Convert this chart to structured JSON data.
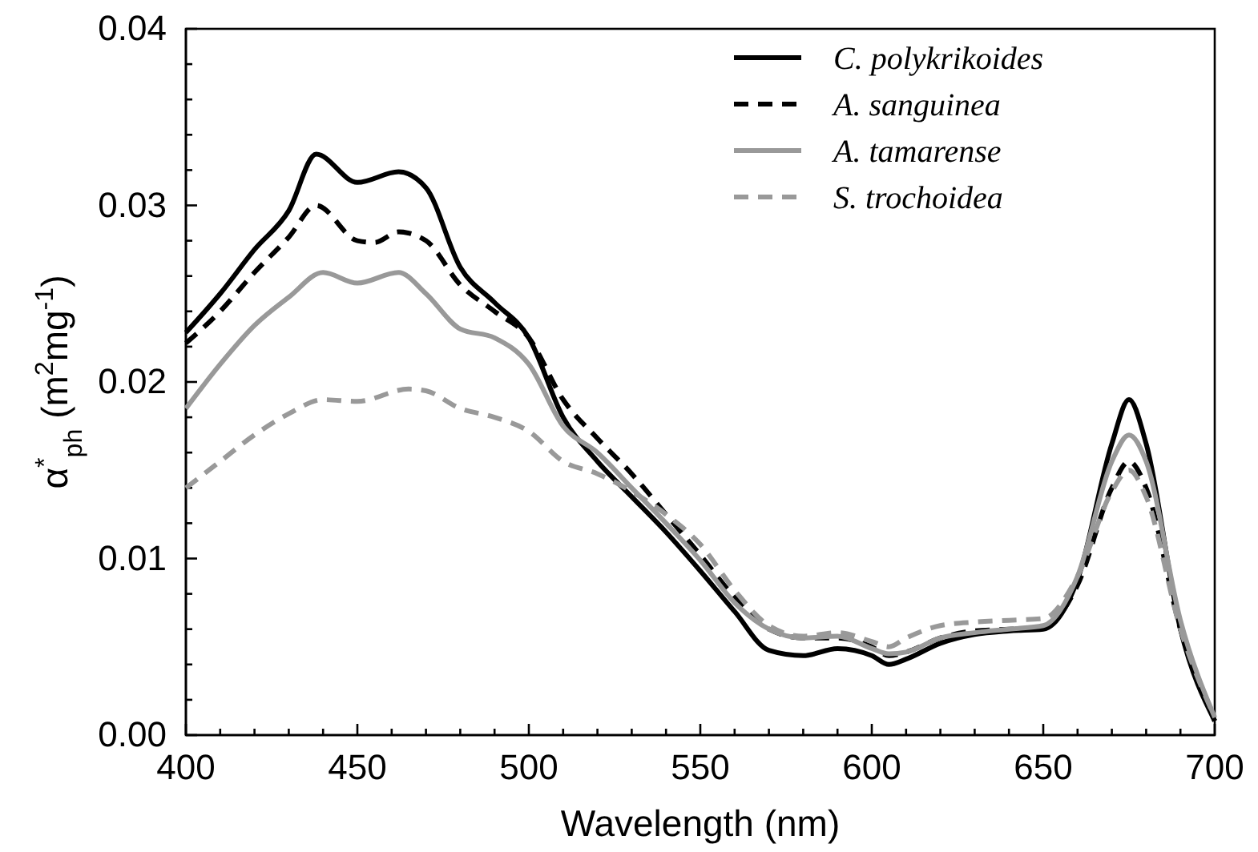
{
  "chart_data": {
    "type": "line",
    "xlabel": "Wavelength (nm)",
    "ylabel": "α$^{*}$$_{ph}$ (m$^{2}$mg$^{-1}$)",
    "xlim": [
      400,
      700
    ],
    "ylim": [
      0,
      0.04
    ],
    "xticks": [
      400,
      {
        "value": 410,
        "label": null
      },
      {
        "value": 420,
        "label": null
      },
      {
        "value": 430,
        "label": null
      },
      {
        "value": 440,
        "label": null
      },
      450,
      {
        "value": 460,
        "label": null
      },
      {
        "value": 470,
        "label": null
      },
      {
        "value": 480,
        "label": null
      },
      {
        "value": 490,
        "label": null
      },
      500,
      {
        "value": 510,
        "label": null
      },
      {
        "value": 520,
        "label": null
      },
      {
        "value": 530,
        "label": null
      },
      {
        "value": 540,
        "label": null
      },
      550,
      {
        "value": 560,
        "label": null
      },
      {
        "value": 570,
        "label": null
      },
      {
        "value": 580,
        "label": null
      },
      {
        "value": 590,
        "label": null
      },
      600,
      {
        "value": 610,
        "label": null
      },
      {
        "value": 620,
        "label": null
      },
      {
        "value": 630,
        "label": null
      },
      {
        "value": 640,
        "label": null
      },
      650,
      {
        "value": 660,
        "label": null
      },
      {
        "value": 670,
        "label": null
      },
      {
        "value": 680,
        "label": null
      },
      {
        "value": 690,
        "label": null
      },
      700
    ],
    "yticks": [
      {
        "value": 0,
        "label": "0.00"
      },
      {
        "value": 0.002,
        "label": null
      },
      {
        "value": 0.004,
        "label": null
      },
      {
        "value": 0.006,
        "label": null
      },
      {
        "value": 0.008,
        "label": null
      },
      {
        "value": 0.01,
        "label": "0.01"
      },
      {
        "value": 0.012,
        "label": null
      },
      {
        "value": 0.014,
        "label": null
      },
      {
        "value": 0.016,
        "label": null
      },
      {
        "value": 0.018,
        "label": null
      },
      {
        "value": 0.02,
        "label": "0.02"
      },
      {
        "value": 0.022,
        "label": null
      },
      {
        "value": 0.024,
        "label": null
      },
      {
        "value": 0.026,
        "label": null
      },
      {
        "value": 0.028,
        "label": null
      },
      {
        "value": 0.03,
        "label": "0.03"
      },
      {
        "value": 0.032,
        "label": null
      },
      {
        "value": 0.034,
        "label": null
      },
      {
        "value": 0.036,
        "label": null
      },
      {
        "value": 0.038,
        "label": null
      },
      {
        "value": 0.04,
        "label": "0.04"
      }
    ],
    "grid": false,
    "legend": "top right",
    "marker": "none",
    "series": [
      {
        "name": "C. polykrikoides",
        "color": "#000000",
        "line_style": "solid",
        "x": [
          400,
          410,
          420,
          430,
          438,
          450,
          462,
          470,
          480,
          490,
          500,
          510,
          520,
          530,
          540,
          550,
          560,
          570,
          580,
          590,
          600,
          605,
          610,
          620,
          630,
          640,
          650,
          660,
          670,
          675,
          680,
          690,
          700
        ],
        "values": [
          0.0228,
          0.025,
          0.0275,
          0.0297,
          0.0329,
          0.0313,
          0.0319,
          0.031,
          0.0265,
          0.0245,
          0.0225,
          0.018,
          0.0155,
          0.0135,
          0.0115,
          0.0093,
          0.007,
          0.0048,
          0.0045,
          0.0049,
          0.0045,
          0.004,
          0.0043,
          0.0052,
          0.0057,
          0.0059,
          0.006,
          0.0088,
          0.0165,
          0.019,
          0.0165,
          0.006,
          0.0008
        ]
      },
      {
        "name": "A. sanguinea",
        "color": "#000000",
        "line_style": "dashed",
        "x": [
          400,
          410,
          420,
          430,
          438,
          450,
          455,
          462,
          470,
          480,
          490,
          500,
          510,
          520,
          530,
          540,
          550,
          560,
          570,
          580,
          590,
          600,
          605,
          610,
          620,
          630,
          640,
          650,
          660,
          670,
          675,
          680,
          690,
          700
        ],
        "values": [
          0.0222,
          0.024,
          0.0262,
          0.0282,
          0.03,
          0.028,
          0.0279,
          0.0285,
          0.028,
          0.0255,
          0.024,
          0.0225,
          0.019,
          0.0168,
          0.0148,
          0.0125,
          0.0102,
          0.0078,
          0.006,
          0.0055,
          0.0055,
          0.005,
          0.0045,
          0.0047,
          0.0055,
          0.0059,
          0.006,
          0.0061,
          0.0085,
          0.014,
          0.0155,
          0.014,
          0.006,
          0.0008
        ]
      },
      {
        "name": "A. tamarense",
        "color": "#999999",
        "line_style": "solid",
        "x": [
          400,
          410,
          420,
          430,
          440,
          450,
          462,
          470,
          480,
          490,
          500,
          510,
          520,
          530,
          540,
          550,
          560,
          570,
          580,
          590,
          600,
          605,
          610,
          620,
          630,
          640,
          650,
          660,
          670,
          675,
          680,
          690,
          700
        ],
        "values": [
          0.0185,
          0.021,
          0.0232,
          0.0248,
          0.0262,
          0.0256,
          0.0262,
          0.025,
          0.023,
          0.0225,
          0.021,
          0.0175,
          0.016,
          0.014,
          0.012,
          0.0099,
          0.0075,
          0.006,
          0.0055,
          0.0056,
          0.0049,
          0.0046,
          0.0047,
          0.0055,
          0.0058,
          0.006,
          0.0062,
          0.009,
          0.0155,
          0.017,
          0.0155,
          0.0065,
          0.001
        ]
      },
      {
        "name": "S. trochoidea",
        "color": "#999999",
        "line_style": "dashed",
        "x": [
          400,
          410,
          420,
          430,
          440,
          450,
          465,
          470,
          480,
          490,
          500,
          510,
          520,
          530,
          540,
          550,
          560,
          570,
          580,
          590,
          600,
          605,
          610,
          620,
          630,
          640,
          650,
          660,
          670,
          675,
          680,
          690,
          700
        ],
        "values": [
          0.014,
          0.0155,
          0.017,
          0.0182,
          0.019,
          0.0189,
          0.0196,
          0.0195,
          0.0185,
          0.018,
          0.0172,
          0.0155,
          0.0148,
          0.0138,
          0.0125,
          0.0108,
          0.0082,
          0.0062,
          0.0056,
          0.0058,
          0.0053,
          0.005,
          0.0055,
          0.0062,
          0.0064,
          0.0065,
          0.0066,
          0.009,
          0.0138,
          0.015,
          0.0135,
          0.006,
          0.001
        ]
      }
    ]
  }
}
